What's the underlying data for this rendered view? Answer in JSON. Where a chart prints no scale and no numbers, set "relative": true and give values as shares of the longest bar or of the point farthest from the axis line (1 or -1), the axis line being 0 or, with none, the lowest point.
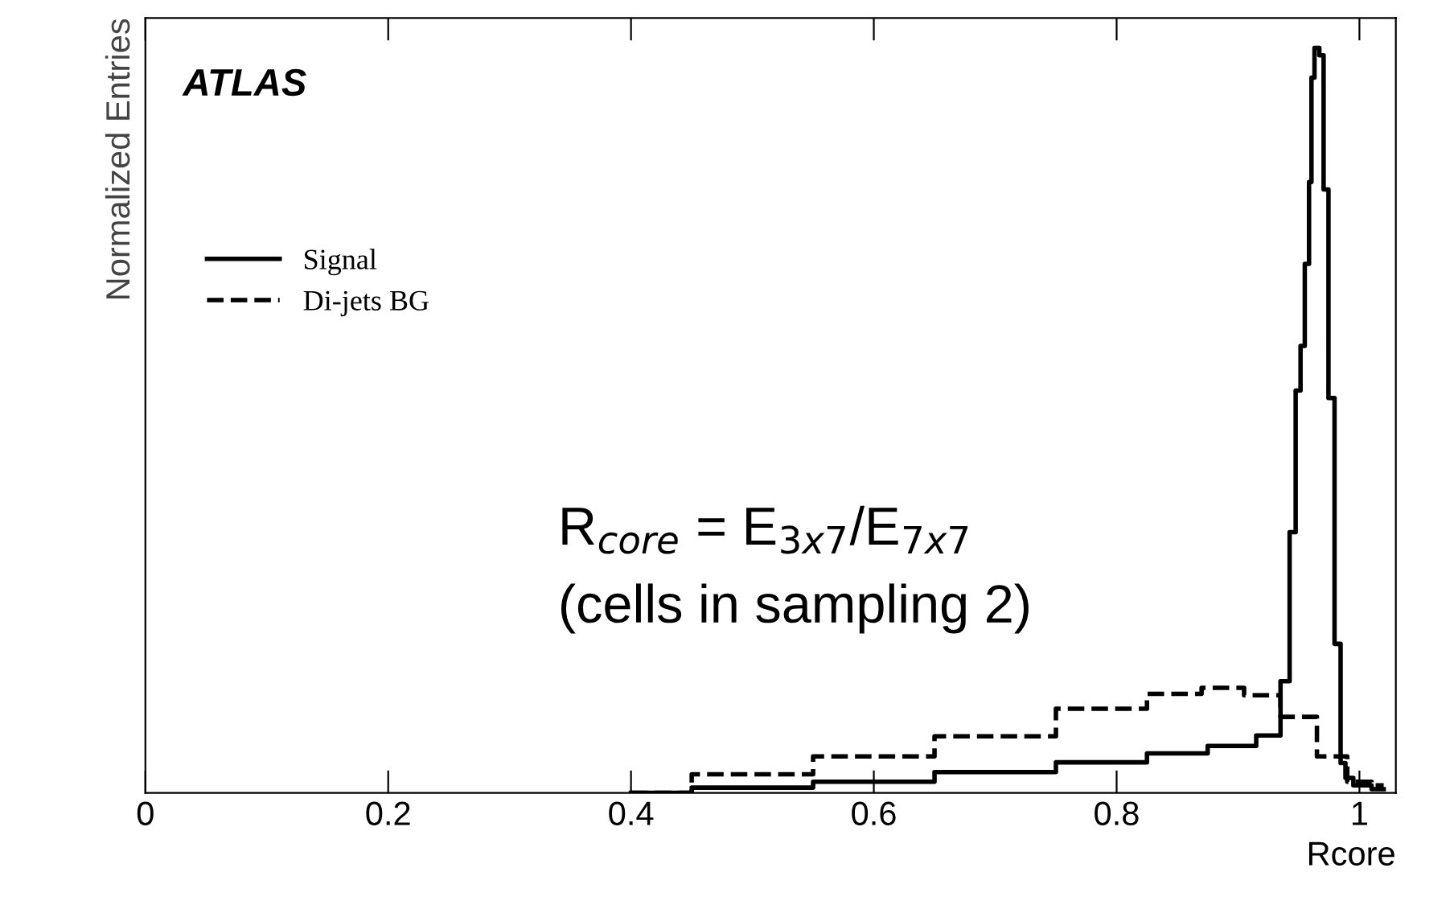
{
  "chart_data": {
    "type": "step",
    "relative": true,
    "xlabel": "Rcore",
    "ylabel": "Normalized Entries",
    "xlim": [
      0,
      1.03
    ],
    "xticks": [
      0,
      0.2,
      0.4,
      0.6,
      0.8,
      1
    ],
    "legend": "top left",
    "grid": false,
    "annotations": [
      "ATLAS",
      "R$_{core}$ = E$_{3x7}$/E$_{7x7}$",
      "(cells in sampling 2)"
    ],
    "series": [
      {
        "name": "Signal",
        "color": "#000000",
        "line_style": "solid",
        "x": [
          0.4,
          0.5,
          0.6,
          0.7,
          0.8,
          0.85,
          0.9,
          0.93,
          0.94,
          0.945,
          0.95,
          0.953,
          0.957,
          0.96,
          0.961,
          0.965,
          0.969,
          0.972,
          0.977,
          0.982,
          0.987,
          0.99,
          1.0,
          1.02
        ],
        "values": [
          0,
          0.007,
          0.015,
          0.028,
          0.041,
          0.053,
          0.063,
          0.077,
          0.15,
          0.35,
          0.54,
          0.6,
          0.71,
          0.82,
          0.96,
          1.0,
          0.99,
          0.81,
          0.53,
          0.2,
          0.04,
          0.02,
          0.01,
          0.005
        ]
      },
      {
        "name": "Di-jets BG",
        "color": "#000000",
        "line_style": "dashed",
        "x": [
          0.4,
          0.5,
          0.6,
          0.7,
          0.8,
          0.85,
          0.89,
          0.92,
          0.95,
          0.98,
          1.0,
          1.02
        ],
        "values": [
          0,
          0.025,
          0.049,
          0.076,
          0.113,
          0.133,
          0.141,
          0.131,
          0.102,
          0.049,
          0.015,
          0.01
        ]
      }
    ]
  }
}
